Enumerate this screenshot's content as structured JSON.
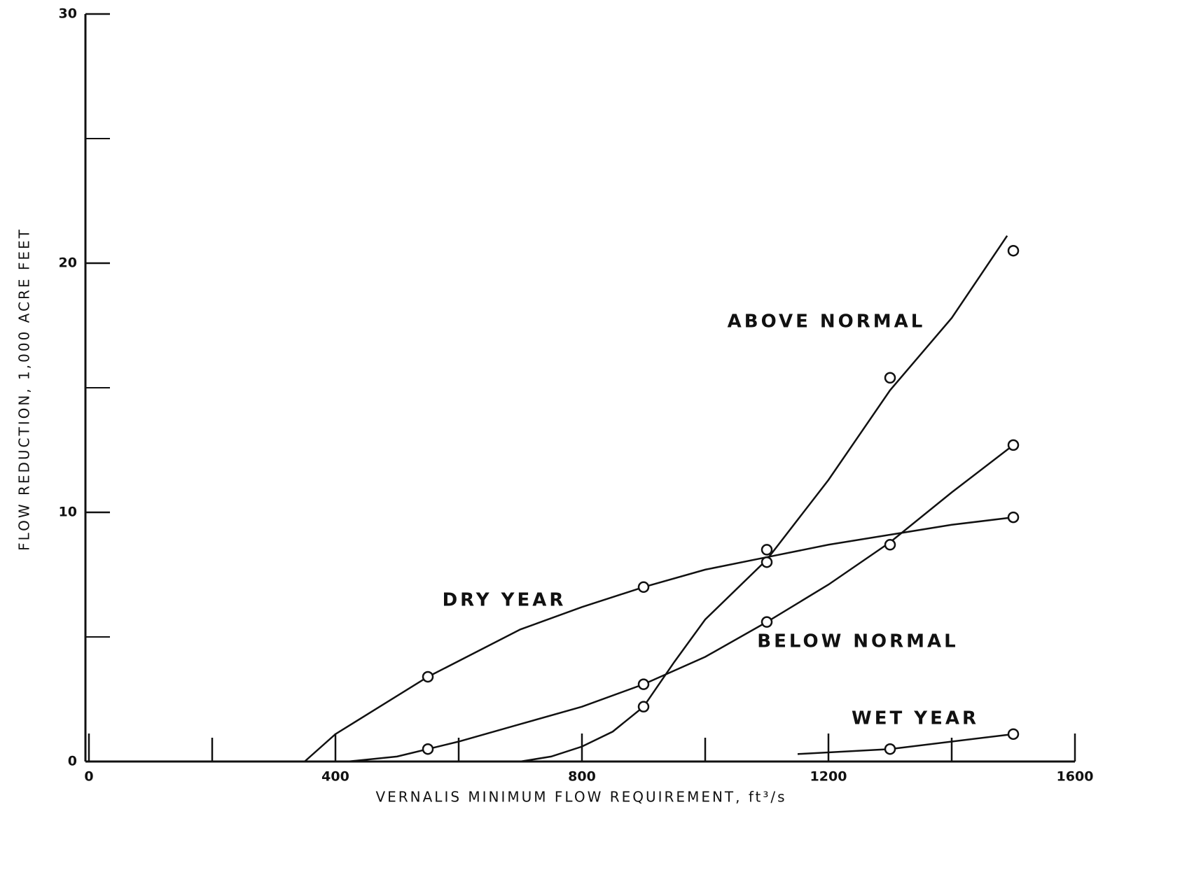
{
  "chart_data": {
    "type": "line",
    "xlabel": "VERNALIS MINIMUM FLOW REQUIREMENT, ft³/s",
    "ylabel": "FLOW REDUCTION, 1,000 ACRE FEET",
    "xlim": [
      0,
      1600
    ],
    "xticks": [
      0,
      400,
      800,
      1200,
      1600
    ],
    "xticks_minor": [
      200,
      600,
      1000,
      1400
    ],
    "ylim": [
      0,
      30
    ],
    "yticks": [
      0,
      10,
      20,
      30
    ],
    "yticks_minor": [
      5,
      15,
      25
    ],
    "color": "#111111",
    "series": [
      {
        "name": "ABOVE NORMAL",
        "color": "#111111",
        "x": [
          900,
          1100,
          1300,
          1500
        ],
        "values": [
          2.2,
          8.5,
          15.4,
          20.5
        ],
        "curve": {
          "x": [
            700,
            750,
            800,
            850,
            900,
            950,
            1000,
            1100,
            1200,
            1300,
            1400,
            1490
          ],
          "values": [
            0,
            0.2,
            0.6,
            1.2,
            2.2,
            4.0,
            5.7,
            8.1,
            11.3,
            14.9,
            17.8,
            21.1
          ]
        }
      },
      {
        "name": "DRY YEAR",
        "color": "#111111",
        "x": [
          550,
          900,
          1100,
          1500
        ],
        "values": [
          3.4,
          7.0,
          8.0,
          9.8
        ],
        "curve": {
          "x": [
            350,
            400,
            550,
            700,
            800,
            900,
            1000,
            1100,
            1200,
            1300,
            1400,
            1500
          ],
          "values": [
            0,
            1.1,
            3.4,
            5.3,
            6.2,
            7.0,
            7.7,
            8.2,
            8.7,
            9.1,
            9.5,
            9.8
          ]
        }
      },
      {
        "name": "BELOW NORMAL",
        "color": "#111111",
        "x": [
          550,
          900,
          1100,
          1300,
          1500
        ],
        "values": [
          0.5,
          3.1,
          5.6,
          8.7,
          12.7
        ],
        "curve": {
          "x": [
            420,
            500,
            600,
            700,
            800,
            900,
            1000,
            1100,
            1200,
            1300,
            1400,
            1500
          ],
          "values": [
            0,
            0.2,
            0.8,
            1.5,
            2.2,
            3.1,
            4.2,
            5.6,
            7.1,
            8.8,
            10.8,
            12.7
          ]
        }
      },
      {
        "name": "WET YEAR",
        "color": "#111111",
        "x": [
          1300,
          1500
        ],
        "values": [
          0.5,
          1.1
        ],
        "curve": {
          "x": [
            1150,
            1300,
            1500
          ],
          "values": [
            0.3,
            0.5,
            1.1
          ]
        }
      }
    ]
  }
}
